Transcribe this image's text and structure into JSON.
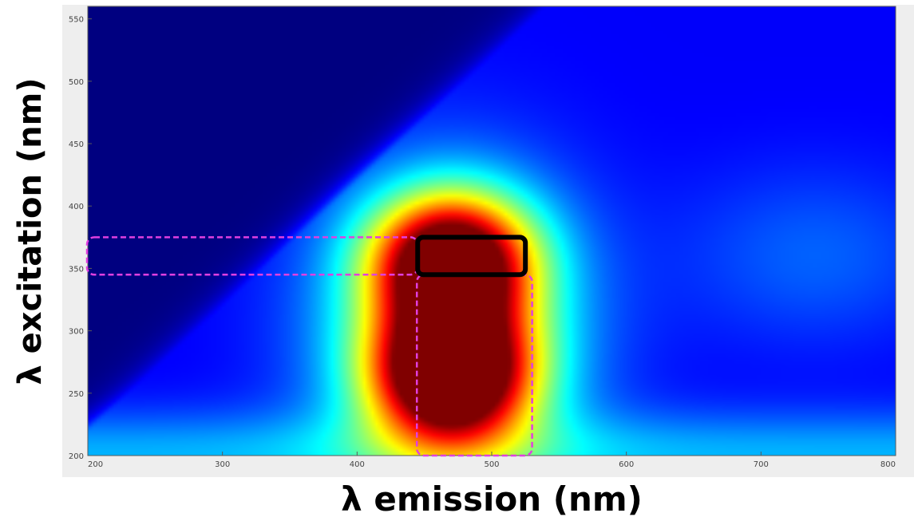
{
  "chart_data": {
    "type": "heatmap",
    "title": "",
    "xlabel": "λ emission (nm)",
    "ylabel": "λ excitation (nm)",
    "xlim": [
      200,
      800
    ],
    "ylim": [
      200,
      560
    ],
    "x_ticks": [
      200,
      300,
      400,
      500,
      600,
      700,
      800
    ],
    "y_ticks": [
      200,
      250,
      300,
      350,
      400,
      450,
      500,
      550
    ],
    "x_tick_labels": [
      "200",
      "300",
      "400",
      "500",
      "600",
      "700",
      "800"
    ],
    "y_tick_labels": [
      "200",
      "250",
      "300",
      "350",
      "400",
      "450",
      "500",
      "550"
    ],
    "colormap": "jet",
    "grid": false,
    "peaks": [
      {
        "emission": 470,
        "excitation": 265,
        "intensity": 1.0
      },
      {
        "emission": 470,
        "excitation": 355,
        "intensity": 0.92
      }
    ],
    "highlight_box": {
      "emission": [
        445,
        525
      ],
      "excitation": [
        345,
        375
      ],
      "color": "#000000"
    },
    "dashed_regions": [
      {
        "emission": [
          200,
          445
        ],
        "excitation": [
          345,
          375
        ],
        "color": "#e040e0"
      },
      {
        "emission": [
          445,
          530
        ],
        "excitation": [
          200,
          345
        ],
        "color": "#e040e0"
      }
    ]
  }
}
